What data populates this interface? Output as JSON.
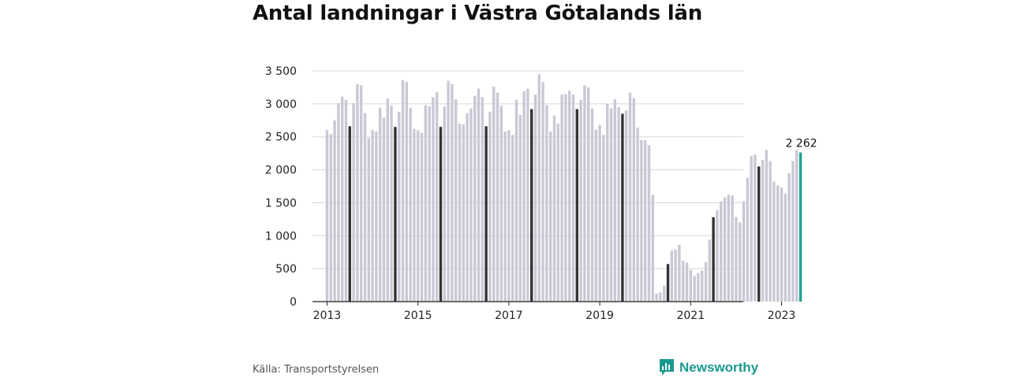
{
  "title": "Antal landningar i Västra Götalands län",
  "source": "Källa: Transportstyrelsen",
  "brand": "Newsworthy",
  "colors": {
    "bar": "#c9c9d6",
    "highlight": "#333333",
    "latest": "#1aa391",
    "grid": "#d8d8d8",
    "axis": "#222222",
    "brand": "#1a9a8e"
  },
  "chart_data": {
    "type": "bar",
    "title": "Antal landningar i Västra Götalands län",
    "xlabel": "",
    "ylabel": "",
    "ylim": [
      0,
      3500
    ],
    "yticks": [
      0,
      500,
      1000,
      1500,
      2000,
      2500,
      3000,
      3500
    ],
    "ytick_labels": [
      "0",
      "500",
      "1 000",
      "1 500",
      "2 000",
      "2 500",
      "3 000",
      "3 500"
    ],
    "xtick_labels": [
      "2013",
      "2015",
      "2017",
      "2019",
      "2021",
      "2023"
    ],
    "start": "2013-01",
    "grid": true,
    "highlight_month": 7,
    "latest_label": "2 262",
    "values": [
      2600,
      2540,
      2750,
      3010,
      3110,
      3060,
      2660,
      3010,
      3300,
      3280,
      2860,
      2480,
      2600,
      2580,
      2940,
      2790,
      3080,
      2970,
      2650,
      2880,
      3360,
      3330,
      2940,
      2620,
      2600,
      2560,
      2980,
      2960,
      3100,
      3180,
      2650,
      2960,
      3350,
      3300,
      3070,
      2700,
      2690,
      2860,
      2930,
      3120,
      3230,
      3100,
      2660,
      2880,
      3260,
      3170,
      2970,
      2580,
      2600,
      2530,
      3060,
      2830,
      3190,
      3230,
      2920,
      3140,
      3450,
      3330,
      2980,
      2580,
      2820,
      2700,
      3140,
      3150,
      3200,
      3140,
      2920,
      3060,
      3280,
      3250,
      2930,
      2610,
      2680,
      2530,
      3000,
      2930,
      3070,
      2950,
      2850,
      2900,
      3170,
      3090,
      2640,
      2450,
      2450,
      2370,
      1620,
      120,
      140,
      240,
      570,
      770,
      790,
      860,
      620,
      590,
      480,
      390,
      430,
      470,
      600,
      940,
      1280,
      1390,
      1520,
      1580,
      1620,
      1610,
      1280,
      1200,
      1520,
      1880,
      2210,
      2230,
      2050,
      2150,
      2300,
      2130,
      1820,
      1760,
      1730,
      1640,
      1950,
      2130,
      2300,
      2262
    ]
  }
}
